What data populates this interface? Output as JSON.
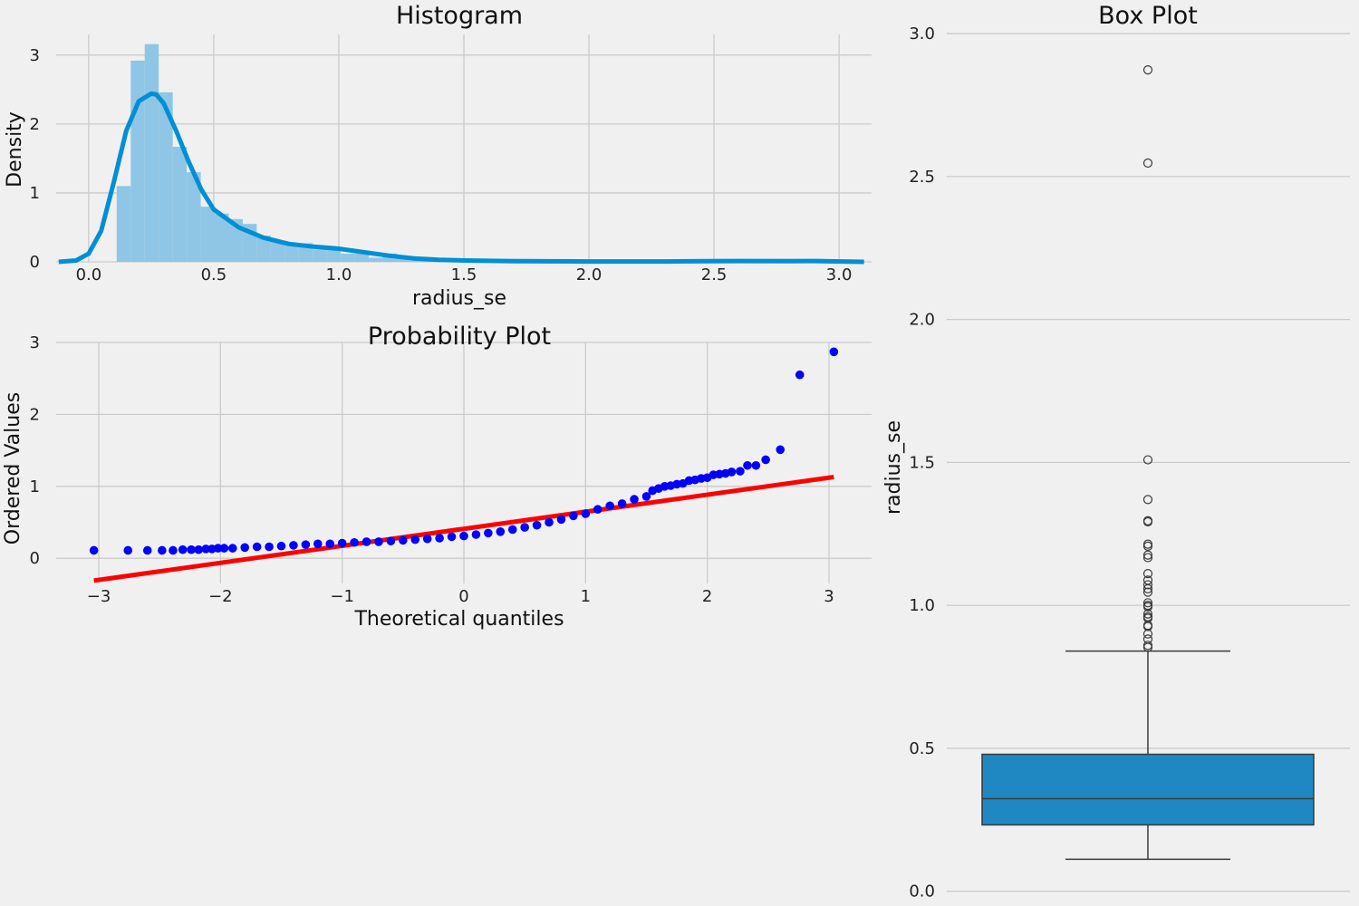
{
  "chart_data": [
    {
      "type": "bar",
      "title": "Histogram",
      "xlabel": "radius_se",
      "ylabel": "Density",
      "xlim": [
        -0.13,
        3.13
      ],
      "ylim": [
        0,
        3.3
      ],
      "x_ticks": [
        "0.0",
        "0.5",
        "1.0",
        "1.5",
        "2.0",
        "2.5",
        "3.0"
      ],
      "y_ticks": [
        "0",
        "1",
        "2",
        "3"
      ],
      "grid": true,
      "bar_color": "#8fc6e5",
      "kde_color": "#008fd5",
      "bins": [
        {
          "x0": 0.112,
          "x1": 0.168,
          "density": 1.1
        },
        {
          "x0": 0.168,
          "x1": 0.224,
          "density": 2.92
        },
        {
          "x0": 0.224,
          "x1": 0.28,
          "density": 3.16
        },
        {
          "x0": 0.28,
          "x1": 0.336,
          "density": 2.46
        },
        {
          "x0": 0.336,
          "x1": 0.392,
          "density": 1.67
        },
        {
          "x0": 0.392,
          "x1": 0.448,
          "density": 1.3
        },
        {
          "x0": 0.448,
          "x1": 0.504,
          "density": 0.8
        },
        {
          "x0": 0.504,
          "x1": 0.56,
          "density": 0.7
        },
        {
          "x0": 0.56,
          "x1": 0.616,
          "density": 0.62
        },
        {
          "x0": 0.616,
          "x1": 0.672,
          "density": 0.55
        },
        {
          "x0": 0.672,
          "x1": 0.728,
          "density": 0.38
        },
        {
          "x0": 0.728,
          "x1": 0.784,
          "density": 0.3
        },
        {
          "x0": 0.784,
          "x1": 0.84,
          "density": 0.25
        },
        {
          "x0": 0.84,
          "x1": 0.896,
          "density": 0.27
        },
        {
          "x0": 0.896,
          "x1": 0.952,
          "density": 0.18
        },
        {
          "x0": 0.952,
          "x1": 1.008,
          "density": 0.18
        },
        {
          "x0": 1.008,
          "x1": 1.064,
          "density": 0.12
        },
        {
          "x0": 1.064,
          "x1": 1.12,
          "density": 0.12
        },
        {
          "x0": 1.12,
          "x1": 1.176,
          "density": 0.06
        },
        {
          "x0": 1.176,
          "x1": 1.232,
          "density": 0.12
        },
        {
          "x0": 1.232,
          "x1": 1.288,
          "density": 0.06
        },
        {
          "x0": 1.288,
          "x1": 1.344,
          "density": 0.03
        },
        {
          "x0": 1.344,
          "x1": 1.4,
          "density": 0.02
        },
        {
          "x0": 1.456,
          "x1": 1.512,
          "density": 0.03
        },
        {
          "x0": 2.52,
          "x1": 2.576,
          "density": 0.03
        },
        {
          "x0": 2.856,
          "x1": 2.912,
          "density": 0.03
        }
      ],
      "kde": {
        "x": [
          -0.12,
          -0.05,
          0.0,
          0.05,
          0.1,
          0.15,
          0.2,
          0.25,
          0.27,
          0.3,
          0.35,
          0.4,
          0.45,
          0.5,
          0.6,
          0.7,
          0.8,
          0.9,
          1.0,
          1.1,
          1.2,
          1.3,
          1.4,
          1.5,
          1.7,
          2.0,
          2.3,
          2.5,
          2.6,
          2.8,
          2.9,
          3.1
        ],
        "y": [
          0.0,
          0.02,
          0.12,
          0.45,
          1.15,
          1.9,
          2.33,
          2.44,
          2.43,
          2.3,
          1.9,
          1.45,
          1.05,
          0.76,
          0.5,
          0.35,
          0.26,
          0.22,
          0.19,
          0.14,
          0.09,
          0.05,
          0.03,
          0.02,
          0.01,
          0.005,
          0.005,
          0.01,
          0.012,
          0.01,
          0.012,
          0.0
        ]
      }
    },
    {
      "type": "scatter",
      "title": "Probability Plot",
      "xlabel": "Theoretical quantiles",
      "ylabel": "Ordered Values",
      "xlim": [
        -3.35,
        3.35
      ],
      "ylim": [
        -0.35,
        3.0
      ],
      "x_ticks": [
        "−3",
        "−2",
        "−1",
        "0",
        "1",
        "2",
        "3"
      ],
      "y_ticks": [
        "0",
        "1",
        "2",
        "3"
      ],
      "grid": true,
      "point_color": "#0000ff",
      "line_color": "#ff0000",
      "fit_line": {
        "x": [
          -3.04,
          3.04
        ],
        "y": [
          -0.31,
          1.13
        ]
      },
      "points": {
        "x": [
          -3.04,
          -2.76,
          -2.6,
          -2.48,
          -2.39,
          -2.31,
          -2.24,
          -2.18,
          -2.12,
          -2.07,
          -2.02,
          -1.97,
          -1.9,
          -1.8,
          -1.7,
          -1.6,
          -1.5,
          -1.4,
          -1.3,
          -1.2,
          -1.1,
          -1.0,
          -0.9,
          -0.8,
          -0.7,
          -0.6,
          -0.5,
          -0.4,
          -0.3,
          -0.2,
          -0.1,
          0.0,
          0.1,
          0.2,
          0.3,
          0.4,
          0.5,
          0.6,
          0.7,
          0.8,
          0.9,
          1.0,
          1.1,
          1.2,
          1.3,
          1.4,
          1.5,
          1.55,
          1.6,
          1.65,
          1.7,
          1.75,
          1.8,
          1.85,
          1.9,
          1.95,
          2.0,
          2.05,
          2.1,
          2.15,
          2.2,
          2.27,
          2.33,
          2.4,
          2.48,
          2.6,
          2.76,
          3.04
        ],
        "y": [
          0.11,
          0.11,
          0.11,
          0.11,
          0.11,
          0.12,
          0.12,
          0.12,
          0.13,
          0.13,
          0.14,
          0.14,
          0.14,
          0.15,
          0.16,
          0.16,
          0.17,
          0.18,
          0.19,
          0.2,
          0.2,
          0.21,
          0.22,
          0.23,
          0.23,
          0.24,
          0.25,
          0.26,
          0.27,
          0.28,
          0.3,
          0.31,
          0.33,
          0.35,
          0.37,
          0.4,
          0.43,
          0.46,
          0.5,
          0.54,
          0.59,
          0.62,
          0.68,
          0.73,
          0.76,
          0.82,
          0.86,
          0.94,
          0.97,
          1.0,
          1.01,
          1.03,
          1.04,
          1.08,
          1.09,
          1.11,
          1.12,
          1.16,
          1.17,
          1.18,
          1.2,
          1.21,
          1.29,
          1.29,
          1.37,
          1.51,
          2.55,
          2.87
        ]
      }
    },
    {
      "type": "box",
      "title": "Box Plot",
      "ylabel": "radius_se",
      "ylim": [
        -0.02,
        3.07
      ],
      "y_ticks": [
        "0.0",
        "0.5",
        "1.0",
        "1.5",
        "2.0",
        "2.5",
        "3.0"
      ],
      "grid": true,
      "box_color": "#1f88c2",
      "whisker_low": 0.112,
      "q1": 0.232,
      "median": 0.324,
      "q3": 0.479,
      "whisker_high": 0.84,
      "outliers": [
        0.853,
        0.86,
        0.882,
        0.9,
        0.926,
        0.93,
        0.955,
        0.96,
        0.97,
        0.995,
        1.0,
        1.009,
        1.046,
        1.058,
        1.072,
        1.088,
        1.111,
        1.167,
        1.176,
        1.207,
        1.214,
        1.292,
        1.296,
        1.37,
        1.509,
        2.547,
        2.873
      ]
    }
  ]
}
